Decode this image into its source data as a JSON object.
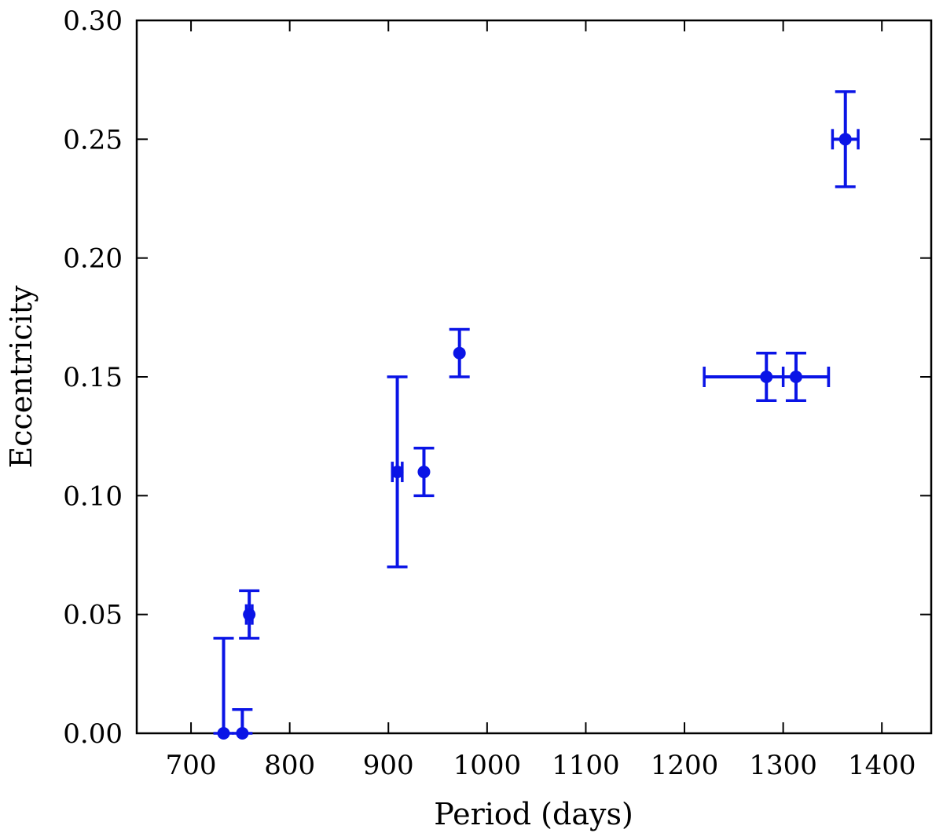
{
  "chart_data": {
    "type": "scatter",
    "title": "",
    "xlabel": "Period (days)",
    "ylabel": "Eccentricity",
    "xlim": [
      645,
      1450
    ],
    "ylim": [
      0.0,
      0.3
    ],
    "x_ticks": [
      700,
      800,
      900,
      1000,
      1100,
      1200,
      1300,
      1400
    ],
    "y_ticks": [
      0.0,
      0.05,
      0.1,
      0.15,
      0.2,
      0.25,
      0.3
    ],
    "y_tick_labels": [
      "0.00",
      "0.05",
      "0.10",
      "0.15",
      "0.20",
      "0.25",
      "0.30"
    ],
    "grid": false,
    "color": "#0a14e6",
    "points": [
      {
        "x": 733,
        "y": 0.0,
        "xerr": [
          0,
          0
        ],
        "yerr": [
          0,
          0.04
        ]
      },
      {
        "x": 752,
        "y": 0.0,
        "xerr": [
          0,
          0
        ],
        "yerr": [
          0,
          0.01
        ]
      },
      {
        "x": 759,
        "y": 0.05,
        "xerr": [
          3,
          3
        ],
        "yerr": [
          0.01,
          0.01
        ]
      },
      {
        "x": 909,
        "y": 0.11,
        "xerr": [
          5,
          5
        ],
        "yerr": [
          0.04,
          0.04
        ]
      },
      {
        "x": 936,
        "y": 0.11,
        "xerr": [
          0,
          0
        ],
        "yerr": [
          0.01,
          0.01
        ]
      },
      {
        "x": 972,
        "y": 0.16,
        "xerr": [
          0,
          0
        ],
        "yerr": [
          0.01,
          0.01
        ]
      },
      {
        "x": 1283,
        "y": 0.15,
        "xerr": [
          63,
          63
        ],
        "yerr": [
          0.01,
          0.01
        ]
      },
      {
        "x": 1313,
        "y": 0.15,
        "xerr": [
          13,
          33
        ],
        "yerr": [
          0.01,
          0.01
        ]
      },
      {
        "x": 1363,
        "y": 0.25,
        "xerr": [
          13,
          13
        ],
        "yerr": [
          0.02,
          0.02
        ]
      }
    ]
  }
}
